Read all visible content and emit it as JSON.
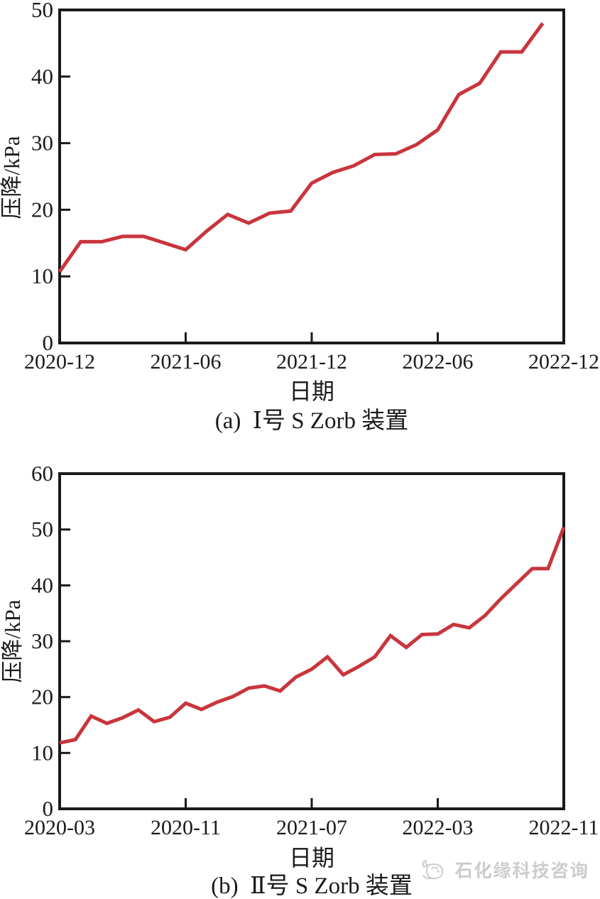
{
  "page": {
    "background": "#ffffff"
  },
  "watermark": {
    "text": "石化缘科技咨询",
    "logo": "bird-logo",
    "color": "#cdcdcd"
  },
  "chart_data": [
    {
      "type": "line",
      "id": "a",
      "caption": "(a)  Ⅰ号 S Zorb 装置",
      "xlabel": "日期",
      "ylabel": "压降/kPa",
      "ylim": [
        0,
        50
      ],
      "yticks": [
        0,
        10,
        20,
        30,
        40,
        50
      ],
      "grid": false,
      "legend": "none",
      "line_color": "#c9353c",
      "x_axis_months_total": 24,
      "xtick_months": [
        0,
        6,
        12,
        18,
        24
      ],
      "xtick_labels": [
        "2020-12",
        "2021-06",
        "2021-12",
        "2022-06",
        "2022-12"
      ],
      "x": [
        "2020-12",
        "2021-01",
        "2021-02",
        "2021-03",
        "2021-04",
        "2021-05",
        "2021-06",
        "2021-07",
        "2021-08",
        "2021-09",
        "2021-10",
        "2021-11",
        "2021-12",
        "2022-01",
        "2022-02",
        "2022-03",
        "2022-04",
        "2022-05",
        "2022-06",
        "2022-07",
        "2022-08",
        "2022-09",
        "2022-10",
        "2022-11"
      ],
      "y": [
        10.7,
        15.2,
        15.2,
        16.0,
        16.0,
        15.0,
        14.0,
        16.8,
        19.3,
        18.0,
        19.5,
        19.8,
        24.0,
        25.6,
        26.6,
        28.3,
        28.4,
        29.8,
        32.0,
        37.3,
        39.0,
        43.7,
        43.7,
        48.0
      ]
    },
    {
      "type": "line",
      "id": "b",
      "caption": "(b)  Ⅱ号 S Zorb 装置",
      "xlabel": "日期",
      "ylabel": "压降/kPa",
      "ylim": [
        0,
        60
      ],
      "yticks": [
        0,
        10,
        20,
        30,
        40,
        50,
        60
      ],
      "grid": false,
      "legend": "none",
      "line_color": "#c9353c",
      "x_axis_months_total": 32,
      "xtick_months": [
        0,
        8,
        16,
        24,
        32
      ],
      "xtick_labels": [
        "2020-03",
        "2020-11",
        "2021-07",
        "2022-03",
        "2022-11"
      ],
      "x": [
        "2020-03",
        "2020-04",
        "2020-05",
        "2020-06",
        "2020-07",
        "2020-08",
        "2020-09",
        "2020-10",
        "2020-11",
        "2020-12",
        "2021-01",
        "2021-02",
        "2021-03",
        "2021-04",
        "2021-05",
        "2021-06",
        "2021-07",
        "2021-08",
        "2021-09",
        "2021-10",
        "2021-11",
        "2021-12",
        "2022-01",
        "2022-02",
        "2022-03",
        "2022-04",
        "2022-05",
        "2022-06",
        "2022-07",
        "2022-08",
        "2022-09",
        "2022-10",
        "2022-11"
      ],
      "y": [
        11.8,
        12.4,
        16.6,
        15.3,
        16.3,
        17.7,
        15.6,
        16.4,
        18.9,
        17.8,
        19.1,
        20.1,
        21.6,
        22.0,
        21.1,
        23.6,
        25.0,
        27.2,
        24.0,
        25.5,
        27.2,
        31.0,
        28.9,
        31.2,
        31.3,
        33.0,
        32.4,
        34.6,
        37.6,
        40.3,
        43.0,
        43.0,
        50.4
      ]
    }
  ]
}
